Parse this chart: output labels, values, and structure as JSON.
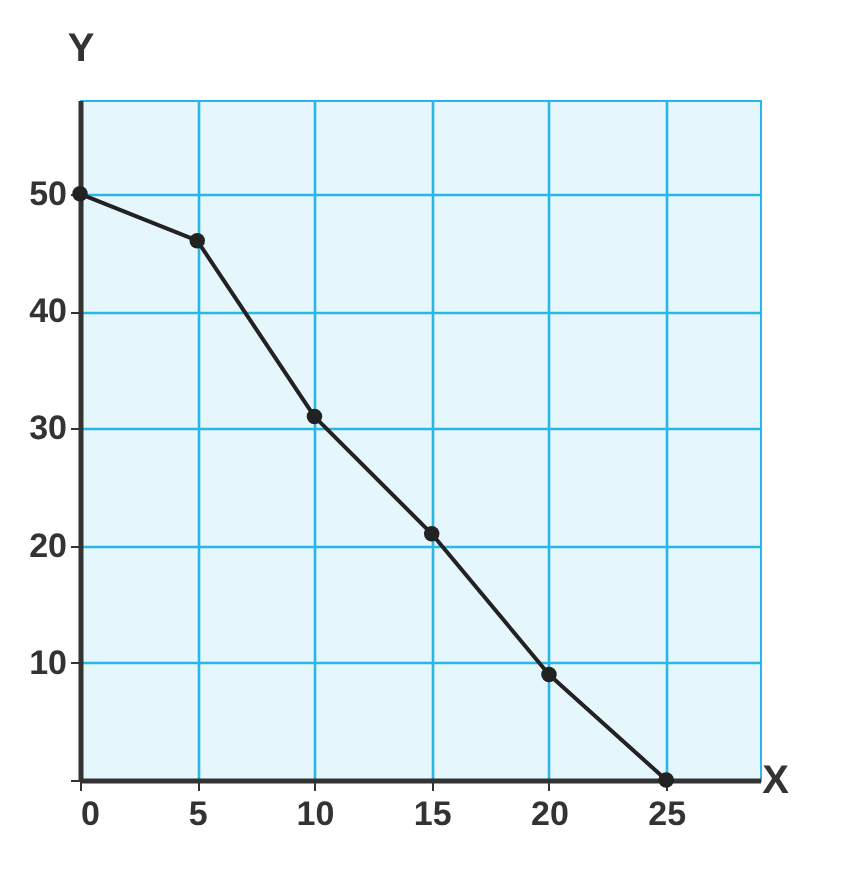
{
  "chart_data": {
    "type": "line",
    "xlabel": "X",
    "ylabel": "Y",
    "x": [
      0,
      5,
      10,
      15,
      20,
      25
    ],
    "series": [
      {
        "color": "#222222",
        "values": [
          50,
          46,
          31,
          21,
          9,
          0
        ]
      }
    ],
    "xlim": [
      0,
      29
    ],
    "ylim": [
      0,
      58
    ],
    "xticks": [
      0,
      5,
      10,
      15,
      20,
      25
    ],
    "yticks": [
      {
        "value": 0,
        "label": null
      },
      10,
      20,
      30,
      40,
      50
    ],
    "grid": true,
    "marker": "circle",
    "line_style": "solid"
  }
}
